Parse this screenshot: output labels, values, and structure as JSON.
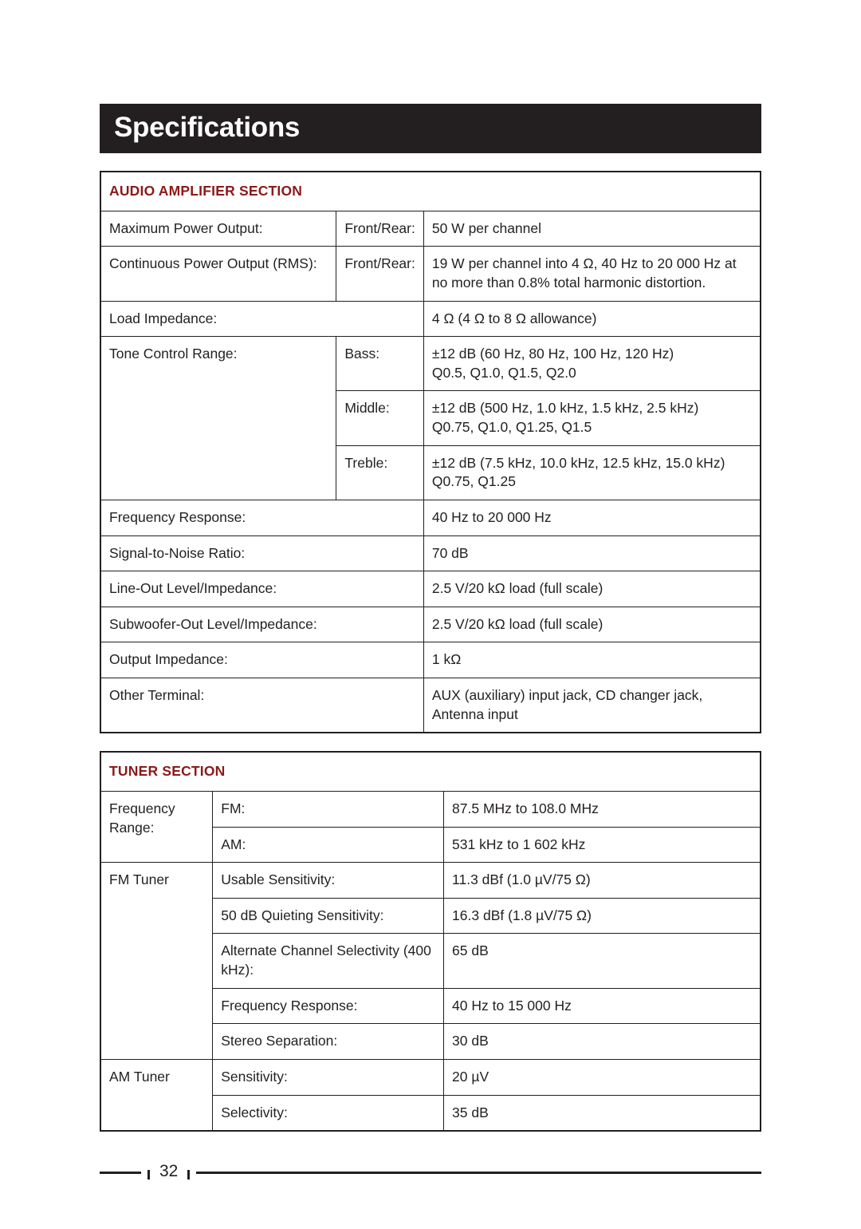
{
  "title": "Specifications",
  "page_number": "32",
  "colors": {
    "title_bg": "#231f20",
    "title_fg": "#ffffff",
    "section_header_fg": "#8b1a1a",
    "border": "#231f20",
    "text": "#231f20"
  },
  "fonts": {
    "title_size_pt": 26,
    "body_size_pt": 13,
    "header_weight": 700
  },
  "sections": {
    "amplifier": {
      "header": "AUDIO AMPLIFIER SECTION",
      "rows": {
        "max_power": {
          "label": "Maximum Power Output:",
          "qualifier": "Front/Rear:",
          "value": "50 W per channel"
        },
        "cont_power": {
          "label": "Continuous Power Output (RMS):",
          "qualifier": "Front/Rear:",
          "value": "19 W per channel into 4 Ω, 40 Hz to 20 000 Hz at no more than 0.8% total harmonic distortion."
        },
        "load_imp": {
          "label": "Load Impedance:",
          "value": "4 Ω (4 Ω to 8 Ω allowance)"
        },
        "tone_bass": {
          "label": "Tone Control Range:",
          "qualifier": "Bass:",
          "value": "±12 dB (60 Hz, 80 Hz, 100 Hz, 120 Hz)\nQ0.5, Q1.0, Q1.5, Q2.0"
        },
        "tone_middle": {
          "qualifier": "Middle:",
          "value": "±12 dB (500 Hz, 1.0 kHz, 1.5 kHz, 2.5 kHz)\nQ0.75, Q1.0, Q1.25, Q1.5"
        },
        "tone_treble": {
          "qualifier": "Treble:",
          "value": "±12 dB (7.5 kHz, 10.0 kHz, 12.5 kHz, 15.0 kHz)\nQ0.75, Q1.25"
        },
        "freq_resp": {
          "label": "Frequency Response:",
          "value": "40 Hz to 20 000 Hz"
        },
        "snr": {
          "label": "Signal-to-Noise Ratio:",
          "value": "70 dB"
        },
        "line_out": {
          "label": "Line-Out Level/Impedance:",
          "value": "2.5 V/20 kΩ load (full scale)"
        },
        "sub_out": {
          "label": "Subwoofer-Out Level/Impedance:",
          "value": "2.5 V/20 kΩ load (full scale)"
        },
        "out_imp": {
          "label": "Output Impedance:",
          "value": "1 kΩ"
        },
        "other_term": {
          "label": "Other Terminal:",
          "value": "AUX (auxiliary) input jack, CD changer jack, Antenna input"
        }
      }
    },
    "tuner": {
      "header": "TUNER SECTION",
      "rows": {
        "freq_fm": {
          "label": "Frequency Range:",
          "qualifier": "FM:",
          "value": "87.5 MHz to 108.0 MHz"
        },
        "freq_am": {
          "qualifier": "AM:",
          "value": "531 kHz to 1 602 kHz"
        },
        "fm_usable": {
          "label": "FM Tuner",
          "qualifier": "Usable Sensitivity:",
          "value": "11.3 dBf (1.0 µV/75 Ω)"
        },
        "fm_quiet": {
          "qualifier": "50 dB Quieting Sensitivity:",
          "value": "16.3 dBf (1.8 µV/75 Ω)"
        },
        "fm_sel": {
          "qualifier": "Alternate Channel Selectivity (400 kHz):",
          "value": "65 dB"
        },
        "fm_freq": {
          "qualifier": "Frequency Response:",
          "value": "40 Hz to 15 000 Hz"
        },
        "fm_sep": {
          "qualifier": "Stereo Separation:",
          "value": "30 dB"
        },
        "am_sens": {
          "label": "AM Tuner",
          "qualifier": "Sensitivity:",
          "value": "20 µV"
        },
        "am_sel": {
          "qualifier": "Selectivity:",
          "value": "35 dB"
        }
      }
    }
  }
}
